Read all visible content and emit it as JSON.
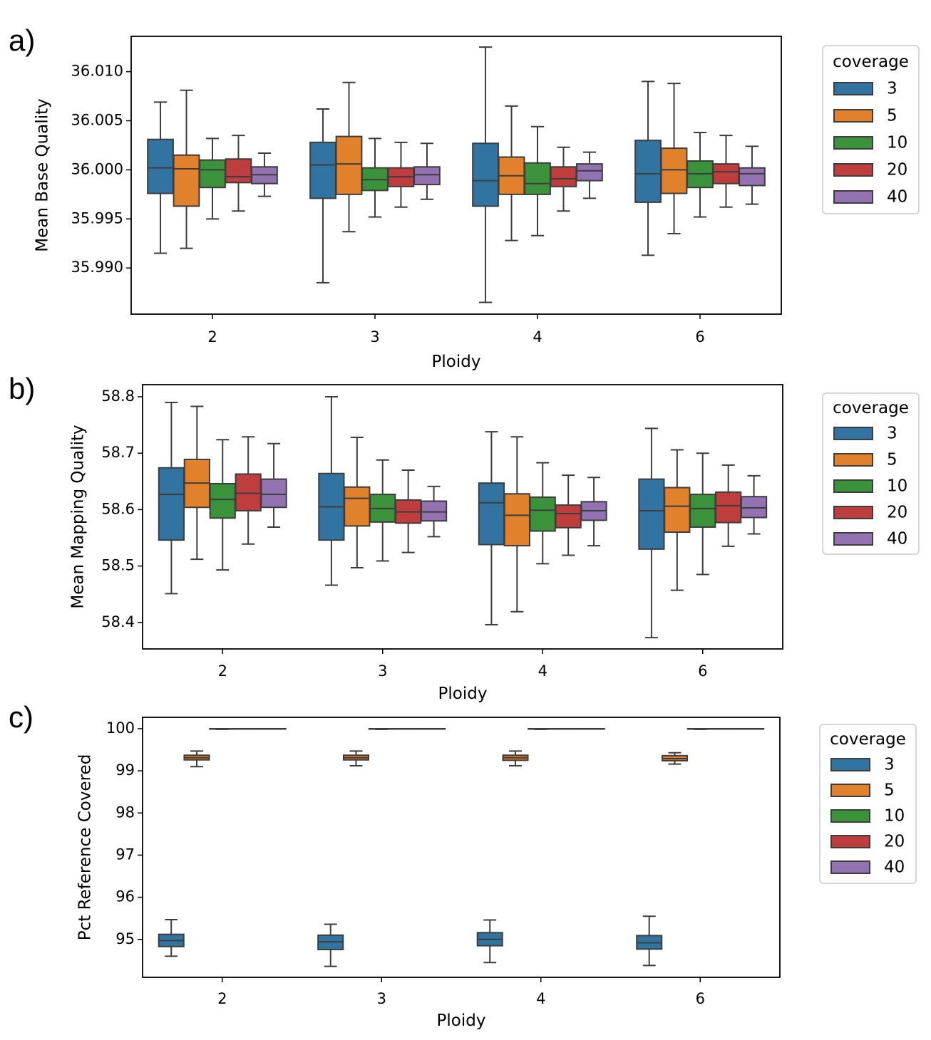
{
  "chart_data": [
    {
      "type": "box",
      "panel_label": "a)",
      "title": "",
      "xlabel": "Ploidy",
      "ylabel": "Mean Base Quality",
      "categories": [
        "2",
        "3",
        "4",
        "6"
      ],
      "ylim": [
        35.9853,
        36.0136
      ],
      "yticks": [
        35.99,
        35.995,
        36.0,
        36.005,
        36.01
      ],
      "ytick_labels": [
        "35.990",
        "35.995",
        "36.000",
        "36.005",
        "36.010"
      ],
      "legend": {
        "title": "coverage",
        "position": "outside-right",
        "entries": [
          "3",
          "5",
          "10",
          "20",
          "40"
        ],
        "colors": [
          "#3274a1",
          "#e1812c",
          "#3a923a",
          "#c03d3e",
          "#9372b2"
        ]
      },
      "series": [
        {
          "name": "3",
          "boxes": [
            {
              "min": 35.9915,
              "q1": 35.9976,
              "median": 36.0002,
              "q3": 36.0031,
              "max": 36.0069
            },
            {
              "min": 35.9885,
              "q1": 35.9971,
              "median": 36.0005,
              "q3": 36.0028,
              "max": 36.0062
            },
            {
              "min": 35.9865,
              "q1": 35.9963,
              "median": 35.9989,
              "q3": 36.0027,
              "max": 36.0125
            },
            {
              "min": 35.9913,
              "q1": 35.9967,
              "median": 35.9996,
              "q3": 36.003,
              "max": 36.009
            }
          ]
        },
        {
          "name": "5",
          "boxes": [
            {
              "min": 35.992,
              "q1": 35.9963,
              "median": 36.0001,
              "q3": 36.0015,
              "max": 36.0081
            },
            {
              "min": 35.9937,
              "q1": 35.9975,
              "median": 36.0006,
              "q3": 36.0034,
              "max": 36.0089
            },
            {
              "min": 35.9928,
              "q1": 35.9975,
              "median": 35.9994,
              "q3": 36.0013,
              "max": 36.0065
            },
            {
              "min": 35.9935,
              "q1": 35.9976,
              "median": 36.0,
              "q3": 36.0022,
              "max": 36.0088
            }
          ]
        },
        {
          "name": "10",
          "boxes": [
            {
              "min": 35.995,
              "q1": 35.9982,
              "median": 36.0,
              "q3": 36.001,
              "max": 36.0032
            },
            {
              "min": 35.9952,
              "q1": 35.9979,
              "median": 35.999,
              "q3": 36.0002,
              "max": 36.0032
            },
            {
              "min": 35.9933,
              "q1": 35.9975,
              "median": 35.9986,
              "q3": 36.0007,
              "max": 36.0044
            },
            {
              "min": 35.9952,
              "q1": 35.9982,
              "median": 35.9996,
              "q3": 36.0009,
              "max": 36.0038
            }
          ]
        },
        {
          "name": "20",
          "boxes": [
            {
              "min": 35.9958,
              "q1": 35.9987,
              "median": 35.9993,
              "q3": 36.0011,
              "max": 36.0035
            },
            {
              "min": 35.9962,
              "q1": 35.9983,
              "median": 35.9993,
              "q3": 36.0002,
              "max": 36.0028
            },
            {
              "min": 35.9958,
              "q1": 35.9983,
              "median": 35.9991,
              "q3": 36.0003,
              "max": 36.0023
            },
            {
              "min": 35.9962,
              "q1": 35.9986,
              "median": 35.9998,
              "q3": 36.0006,
              "max": 36.0035
            }
          ]
        },
        {
          "name": "40",
          "boxes": [
            {
              "min": 35.9973,
              "q1": 35.9986,
              "median": 35.9995,
              "q3": 36.0003,
              "max": 36.0017
            },
            {
              "min": 35.997,
              "q1": 35.9985,
              "median": 35.9995,
              "q3": 36.0003,
              "max": 36.0027
            },
            {
              "min": 35.9971,
              "q1": 35.9989,
              "median": 35.9999,
              "q3": 36.0006,
              "max": 36.0018
            },
            {
              "min": 35.9965,
              "q1": 35.9984,
              "median": 35.9996,
              "q3": 36.0002,
              "max": 36.0024
            }
          ]
        }
      ]
    },
    {
      "type": "box",
      "panel_label": "b)",
      "title": "",
      "xlabel": "Ploidy",
      "ylabel": "Mean Mapping Quality",
      "categories": [
        "2",
        "3",
        "4",
        "6"
      ],
      "ylim": [
        58.353,
        58.8215
      ],
      "yticks": [
        58.4,
        58.5,
        58.6,
        58.7,
        58.8
      ],
      "ytick_labels": [
        "58.4",
        "58.5",
        "58.6",
        "58.7",
        "58.8"
      ],
      "legend": {
        "title": "coverage",
        "position": "outside-right",
        "entries": [
          "3",
          "5",
          "10",
          "20",
          "40"
        ],
        "colors": [
          "#3274a1",
          "#e1812c",
          "#3a923a",
          "#c03d3e",
          "#9372b2"
        ]
      },
      "series": [
        {
          "name": "3",
          "boxes": [
            {
              "min": 58.451,
              "q1": 58.546,
              "median": 58.627,
              "q3": 58.674,
              "max": 58.79
            },
            {
              "min": 58.466,
              "q1": 58.546,
              "median": 58.605,
              "q3": 58.664,
              "max": 58.8
            },
            {
              "min": 58.396,
              "q1": 58.538,
              "median": 58.612,
              "q3": 58.647,
              "max": 58.738
            },
            {
              "min": 58.373,
              "q1": 58.53,
              "median": 58.598,
              "q3": 58.654,
              "max": 58.744
            }
          ]
        },
        {
          "name": "5",
          "boxes": [
            {
              "min": 58.512,
              "q1": 58.604,
              "median": 58.647,
              "q3": 58.689,
              "max": 58.783
            },
            {
              "min": 58.497,
              "q1": 58.571,
              "median": 58.62,
              "q3": 58.64,
              "max": 58.728
            },
            {
              "min": 58.419,
              "q1": 58.536,
              "median": 58.59,
              "q3": 58.628,
              "max": 58.729
            },
            {
              "min": 58.457,
              "q1": 58.56,
              "median": 58.606,
              "q3": 58.639,
              "max": 58.706
            }
          ]
        },
        {
          "name": "10",
          "boxes": [
            {
              "min": 58.493,
              "q1": 58.585,
              "median": 58.618,
              "q3": 58.646,
              "max": 58.724
            },
            {
              "min": 58.509,
              "q1": 58.578,
              "median": 58.602,
              "q3": 58.627,
              "max": 58.688
            },
            {
              "min": 58.504,
              "q1": 58.562,
              "median": 58.599,
              "q3": 58.622,
              "max": 58.683
            },
            {
              "min": 58.485,
              "q1": 58.569,
              "median": 58.602,
              "q3": 58.627,
              "max": 58.7
            }
          ]
        },
        {
          "name": "20",
          "boxes": [
            {
              "min": 58.539,
              "q1": 58.598,
              "median": 58.629,
              "q3": 58.663,
              "max": 58.729
            },
            {
              "min": 58.524,
              "q1": 58.576,
              "median": 58.596,
              "q3": 58.617,
              "max": 58.67
            },
            {
              "min": 58.519,
              "q1": 58.568,
              "median": 58.593,
              "q3": 58.608,
              "max": 58.661
            },
            {
              "min": 58.535,
              "q1": 58.577,
              "median": 58.607,
              "q3": 58.631,
              "max": 58.679
            }
          ]
        },
        {
          "name": "40",
          "boxes": [
            {
              "min": 58.569,
              "q1": 58.604,
              "median": 58.627,
              "q3": 58.654,
              "max": 58.717
            },
            {
              "min": 58.552,
              "q1": 58.58,
              "median": 58.596,
              "q3": 58.615,
              "max": 58.641
            },
            {
              "min": 58.536,
              "q1": 58.581,
              "median": 58.598,
              "q3": 58.614,
              "max": 58.657
            },
            {
              "min": 58.557,
              "q1": 58.586,
              "median": 58.603,
              "q3": 58.623,
              "max": 58.66
            }
          ]
        }
      ]
    },
    {
      "type": "box",
      "panel_label": "c)",
      "title": "",
      "xlabel": "Ploidy",
      "ylabel": "Pct Reference Covered",
      "categories": [
        "2",
        "3",
        "4",
        "6"
      ],
      "ylim": [
        94.1,
        100.27
      ],
      "yticks": [
        95,
        96,
        97,
        98,
        99,
        100
      ],
      "ytick_labels": [
        "95",
        "96",
        "97",
        "98",
        "99",
        "100"
      ],
      "legend": {
        "title": "coverage",
        "position": "outside-right",
        "entries": [
          "3",
          "5",
          "10",
          "20",
          "40"
        ],
        "colors": [
          "#3274a1",
          "#e1812c",
          "#3a923a",
          "#c03d3e",
          "#9372b2"
        ]
      },
      "series": [
        {
          "name": "3",
          "boxes": [
            {
              "min": 94.6,
              "q1": 94.83,
              "median": 94.97,
              "q3": 95.12,
              "max": 95.47
            },
            {
              "min": 94.36,
              "q1": 94.76,
              "median": 94.94,
              "q3": 95.1,
              "max": 95.36
            },
            {
              "min": 94.45,
              "q1": 94.85,
              "median": 95.0,
              "q3": 95.16,
              "max": 95.46
            },
            {
              "min": 94.38,
              "q1": 94.77,
              "median": 94.92,
              "q3": 95.09,
              "max": 95.55
            }
          ]
        },
        {
          "name": "5",
          "boxes": [
            {
              "min": 99.1,
              "q1": 99.26,
              "median": 99.31,
              "q3": 99.37,
              "max": 99.47
            },
            {
              "min": 99.12,
              "q1": 99.26,
              "median": 99.31,
              "q3": 99.37,
              "max": 99.47
            },
            {
              "min": 99.12,
              "q1": 99.25,
              "median": 99.31,
              "q3": 99.37,
              "max": 99.47
            },
            {
              "min": 99.16,
              "q1": 99.24,
              "median": 99.29,
              "q3": 99.36,
              "max": 99.43
            }
          ]
        },
        {
          "name": "10",
          "boxes": [
            {
              "min": 99.985,
              "q1": 99.993,
              "median": 99.997,
              "q3": 99.999,
              "max": 100.0
            },
            {
              "min": 99.985,
              "q1": 99.993,
              "median": 99.997,
              "q3": 99.999,
              "max": 100.0
            },
            {
              "min": 99.985,
              "q1": 99.993,
              "median": 99.997,
              "q3": 99.999,
              "max": 100.0
            },
            {
              "min": 99.985,
              "q1": 99.993,
              "median": 99.997,
              "q3": 99.999,
              "max": 100.0
            }
          ]
        },
        {
          "name": "20",
          "boxes": [
            {
              "min": 99.998,
              "q1": 99.999,
              "median": 100.0,
              "q3": 100.0,
              "max": 100.0
            },
            {
              "min": 99.998,
              "q1": 99.999,
              "median": 100.0,
              "q3": 100.0,
              "max": 100.0
            },
            {
              "min": 99.998,
              "q1": 99.999,
              "median": 100.0,
              "q3": 100.0,
              "max": 100.0
            },
            {
              "min": 99.998,
              "q1": 99.999,
              "median": 100.0,
              "q3": 100.0,
              "max": 100.0
            }
          ]
        },
        {
          "name": "40",
          "boxes": [
            {
              "min": 100.0,
              "q1": 100.0,
              "median": 100.0,
              "q3": 100.0,
              "max": 100.0
            },
            {
              "min": 100.0,
              "q1": 100.0,
              "median": 100.0,
              "q3": 100.0,
              "max": 100.0
            },
            {
              "min": 100.0,
              "q1": 100.0,
              "median": 100.0,
              "q3": 100.0,
              "max": 100.0
            },
            {
              "min": 100.0,
              "q1": 100.0,
              "median": 100.0,
              "q3": 100.0,
              "max": 100.0
            }
          ]
        }
      ]
    }
  ]
}
